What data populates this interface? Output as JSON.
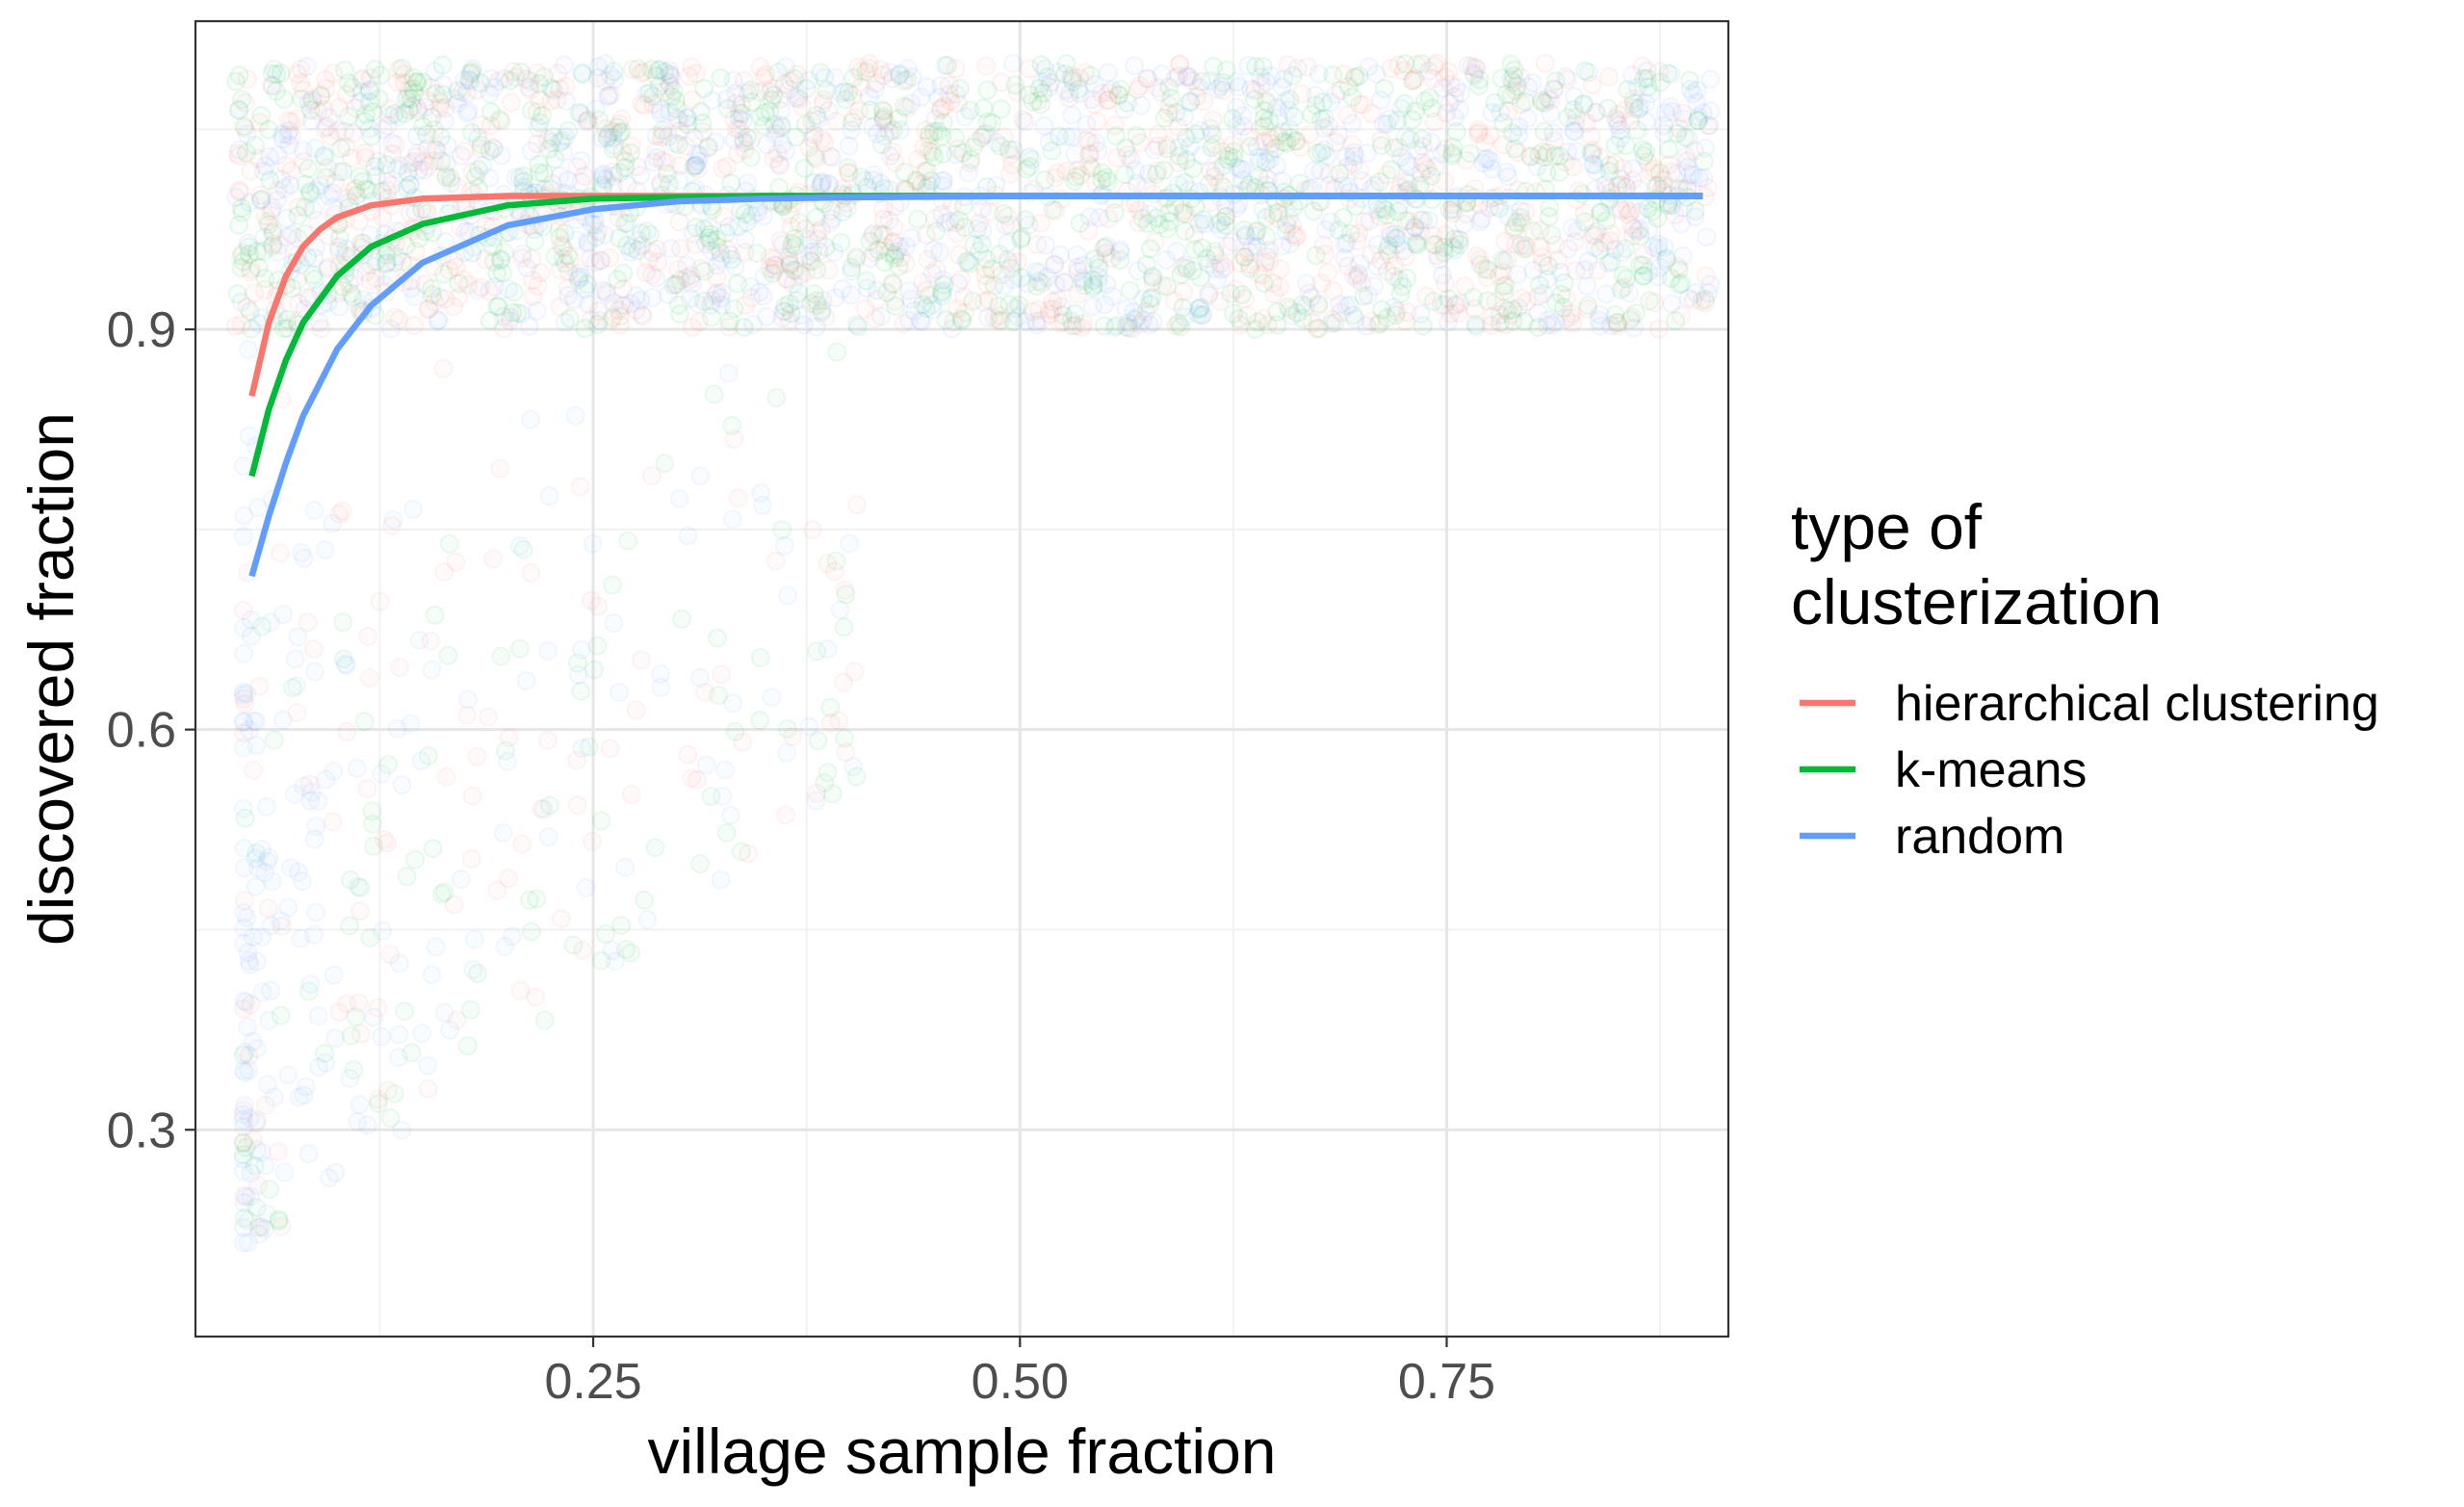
{
  "chart_data": {
    "type": "scatter",
    "xlabel": "village sample fraction",
    "ylabel": "discovered fraction",
    "xlim": [
      0.017,
      0.915
    ],
    "ylim": [
      0.145,
      1.131
    ],
    "x_ticks": [
      0.25,
      0.5,
      0.75
    ],
    "x_tick_labels": [
      "0.25",
      "0.50",
      "0.75"
    ],
    "y_ticks": [
      0.3,
      0.6,
      0.9
    ],
    "y_tick_labels": [
      "0.3",
      "0.6",
      "0.9"
    ],
    "x_minor_ticks": [
      0.125,
      0.375,
      0.625,
      0.875
    ],
    "y_minor_ticks": [
      0.45,
      0.75,
      1.05
    ],
    "grid": true,
    "theme": "bw",
    "legend": {
      "title_lines": [
        "type of",
        "clusterization"
      ],
      "placement": "right"
    },
    "point_cloud": {
      "description": "jittered points, very low alpha",
      "main_band": {
        "x_range": [
          0.04,
          0.905
        ],
        "y_range": [
          0.9,
          1.1
        ]
      },
      "sparse_region": {
        "x_range": [
          0.04,
          0.42
        ],
        "y_range": [
          0.2,
          0.9
        ]
      }
    },
    "series": [
      {
        "name": "hierarchical clustering",
        "color": "#F8766D",
        "x": [
          0.05,
          0.06,
          0.07,
          0.08,
          0.09,
          0.1,
          0.12,
          0.15,
          0.2,
          0.25,
          0.3,
          0.4,
          0.5,
          0.6,
          0.7,
          0.8,
          0.9
        ],
        "y": [
          0.85,
          0.905,
          0.94,
          0.962,
          0.975,
          0.984,
          0.993,
          0.998,
          1.0,
          1.0,
          1.0,
          1.0,
          1.0,
          1.0,
          1.0,
          1.0,
          1.0
        ]
      },
      {
        "name": "k-means",
        "color": "#00BA38",
        "x": [
          0.05,
          0.06,
          0.07,
          0.08,
          0.1,
          0.12,
          0.15,
          0.2,
          0.25,
          0.3,
          0.35,
          0.4,
          0.5,
          0.6,
          0.7,
          0.8,
          0.9
        ],
        "y": [
          0.79,
          0.84,
          0.877,
          0.905,
          0.94,
          0.962,
          0.979,
          0.993,
          0.998,
          0.999,
          1.0,
          1.0,
          1.0,
          1.0,
          1.0,
          1.0,
          1.0
        ]
      },
      {
        "name": "random",
        "color": "#619CFF",
        "x": [
          0.05,
          0.06,
          0.07,
          0.08,
          0.1,
          0.12,
          0.15,
          0.2,
          0.25,
          0.3,
          0.35,
          0.4,
          0.5,
          0.6,
          0.7,
          0.8,
          0.9
        ],
        "y": [
          0.715,
          0.76,
          0.8,
          0.835,
          0.885,
          0.918,
          0.95,
          0.978,
          0.99,
          0.996,
          0.998,
          0.999,
          1.0,
          1.0,
          1.0,
          1.0,
          1.0
        ]
      }
    ]
  }
}
